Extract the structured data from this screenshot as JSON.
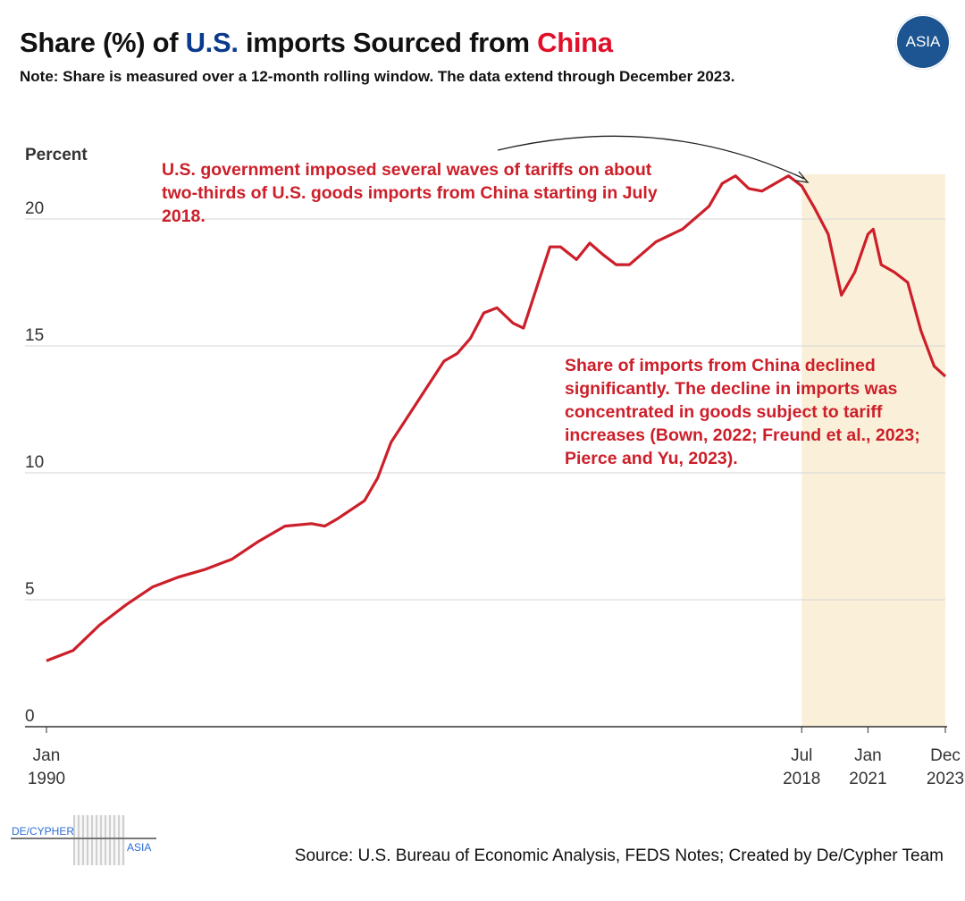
{
  "header": {
    "title_prefix": "Share (%) of ",
    "title_us": "U.S.",
    "title_mid": " imports Sourced from ",
    "title_china": "China",
    "subtitle": "Note: Share is measured over a 12-month rolling window. The data extend through December 2023.",
    "logo_text": "ASIA"
  },
  "annotations": {
    "tariffs": "U.S. government imposed several waves of tariffs on about two-thirds of U.S. goods imports from China starting in July 2018.",
    "decline": "Share of imports from China declined significantly. The decline in imports was concentrated in goods subject to tariff increases (Bown, 2022; Freund et al., 2023; Pierce and Yu, 2023)."
  },
  "footer": {
    "source": "Source: U.S. Bureau of Economic Analysis, FEDS Notes; Created by De/Cypher Team",
    "brand_left": "DE/CYPHER",
    "brand_right": "ASIA"
  },
  "colors": {
    "line": "#cc1f2a",
    "shade": "#faf0d9",
    "us": "#0a3a8c",
    "china": "#e0102a"
  },
  "chart_data": {
    "type": "line",
    "title": "Share (%) of U.S. imports Sourced from China",
    "ylabel": "Percent",
    "xlabel": "",
    "ylim": [
      0,
      22
    ],
    "xlim": [
      1990.0,
      2023.92
    ],
    "yticks": [
      0,
      5,
      10,
      15,
      20
    ],
    "xticks": [
      {
        "x": 1990.0,
        "l1": "Jan",
        "l2": "1990"
      },
      {
        "x": 2018.5,
        "l1": "Jul",
        "l2": "2018"
      },
      {
        "x": 2021.0,
        "l1": "Jan",
        "l2": "2021"
      },
      {
        "x": 2023.92,
        "l1": "Dec",
        "l2": "2023"
      }
    ],
    "shaded_range": [
      2018.5,
      2023.92
    ],
    "grid": "horizontal",
    "series": [
      {
        "name": "Share of U.S. imports from China",
        "x": [
          1990,
          1991,
          1992,
          1993,
          1994,
          1995,
          1996,
          1997,
          1998,
          1999,
          2000,
          2000.5,
          2001,
          2002,
          2002.5,
          2003,
          2004,
          2005,
          2005.5,
          2006,
          2006.5,
          2007,
          2007.6,
          2008,
          2009,
          2009.4,
          2010,
          2010.5,
          2011,
          2011.5,
          2012,
          2013,
          2014,
          2015,
          2015.5,
          2016,
          2016.5,
          2017,
          2018,
          2018.5,
          2019,
          2019.5,
          2020,
          2020.5,
          2021,
          2021.2,
          2021.5,
          2022,
          2022.5,
          2023,
          2023.5,
          2023.92
        ],
        "values": [
          2.6,
          3.0,
          4.0,
          4.8,
          5.5,
          5.9,
          6.2,
          6.6,
          7.3,
          7.9,
          8.0,
          7.9,
          8.2,
          8.9,
          9.8,
          11.2,
          12.8,
          14.4,
          14.7,
          15.3,
          16.3,
          16.5,
          15.9,
          15.7,
          18.9,
          18.9,
          18.4,
          19.05,
          18.6,
          18.2,
          18.2,
          19.1,
          19.6,
          20.5,
          21.4,
          21.7,
          21.2,
          21.1,
          21.7,
          21.3,
          20.4,
          19.4,
          17.0,
          17.9,
          19.4,
          19.6,
          18.2,
          17.9,
          17.5,
          15.6,
          14.2,
          13.8
        ]
      }
    ]
  }
}
